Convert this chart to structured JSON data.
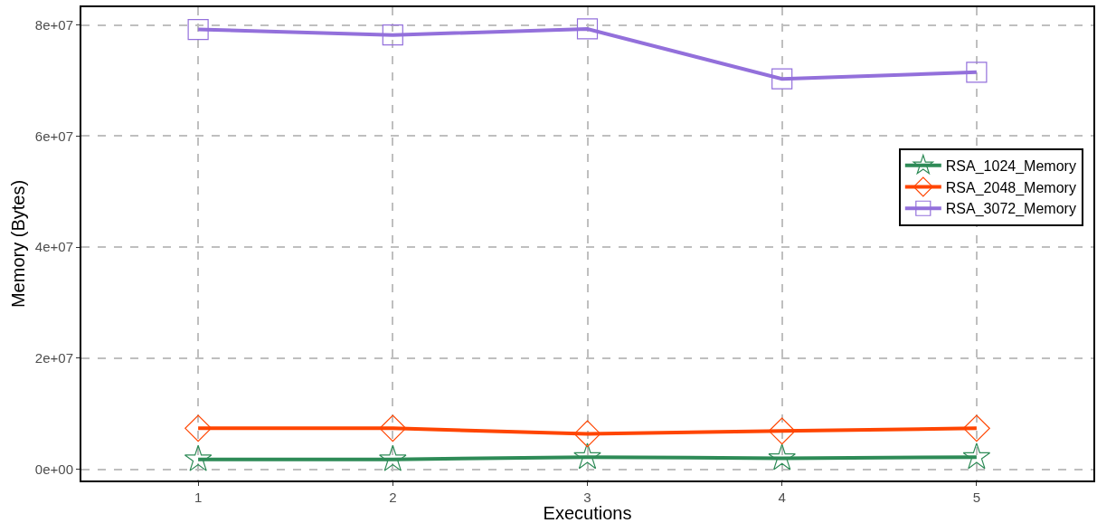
{
  "chart_data": {
    "type": "line",
    "xlabel": "Executions",
    "ylabel": "Memory (Bytes)",
    "x": [
      1,
      2,
      3,
      4,
      5
    ],
    "xlim": [
      0.4,
      5.6
    ],
    "xticks": [
      1,
      2,
      3,
      4,
      5
    ],
    "ylim": [
      -2000000,
      83200000
    ],
    "yticks": [
      {
        "value": 0,
        "label": "0e+00"
      },
      {
        "value": 20000000,
        "label": "2e+07"
      },
      {
        "value": 40000000,
        "label": "4e+07"
      },
      {
        "value": 60000000,
        "label": "6e+07"
      },
      {
        "value": 80000000,
        "label": "8e+07"
      }
    ],
    "series": [
      {
        "name": "RSA_1024_Memory",
        "color": "#2e8b57",
        "marker": "star",
        "values": [
          1800000,
          1800000,
          2200000,
          2000000,
          2200000
        ]
      },
      {
        "name": "RSA_2048_Memory",
        "color": "#ff4500",
        "marker": "diamond",
        "values": [
          7400000,
          7400000,
          6400000,
          6900000,
          7400000
        ]
      },
      {
        "name": "RSA_3072_Memory",
        "color": "#9370db",
        "marker": "square",
        "values": [
          79200000,
          78200000,
          79300000,
          70300000,
          71500000
        ]
      }
    ],
    "grid": true,
    "legend": "right",
    "line_style": "solid"
  }
}
